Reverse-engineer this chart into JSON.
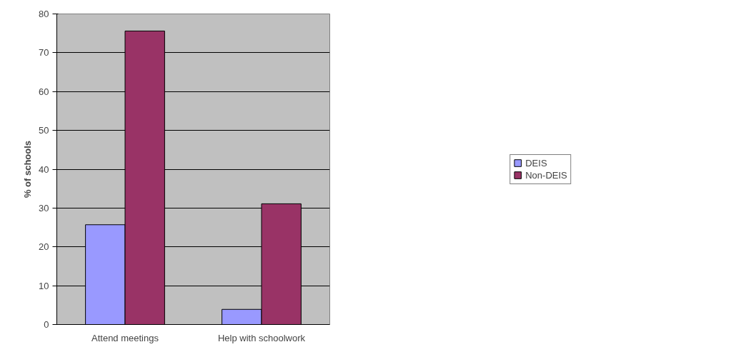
{
  "chart_data": {
    "type": "bar",
    "ylabel": "% of schools",
    "categories": [
      "Attend meetings",
      "Help with schoolwork"
    ],
    "series": [
      {
        "name": "DEIS",
        "color": "#9999ff",
        "values": [
          25.7,
          3.9
        ]
      },
      {
        "name": "Non-DEIS",
        "color": "#993366",
        "values": [
          75.6,
          31.1
        ]
      }
    ],
    "ylim": [
      0,
      80
    ],
    "yticks": [
      0,
      10,
      20,
      30,
      40,
      50,
      60,
      70,
      80
    ],
    "grid": "y",
    "legend": "right"
  }
}
